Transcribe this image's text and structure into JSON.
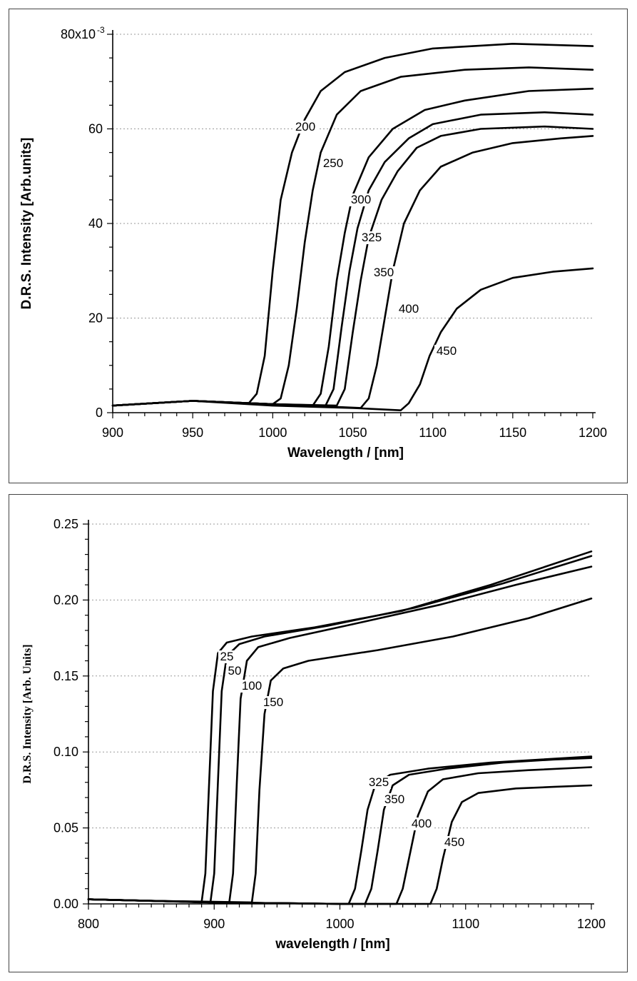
{
  "chart_data": [
    {
      "type": "line",
      "xlabel": "Wavelength / [nm]",
      "ylabel": "D.R.S. Intensity [Arb.units]",
      "xlim": [
        900,
        1200
      ],
      "ylim": [
        0,
        80
      ],
      "x_ticks": [
        "900",
        "950",
        "1000",
        "1050",
        "1100",
        "1150",
        "1200"
      ],
      "y_ticks": [
        "0",
        "20",
        "40",
        "60",
        "80x10"
      ],
      "y_top_exponent": "-3",
      "grid": true,
      "series": [
        {
          "name": "200",
          "points": [
            [
              900,
              1.5
            ],
            [
              950,
              2.5
            ],
            [
              985,
              2.0
            ],
            [
              990,
              4
            ],
            [
              995,
              12
            ],
            [
              1000,
              30
            ],
            [
              1005,
              45
            ],
            [
              1012,
              55
            ],
            [
              1020,
              62
            ],
            [
              1030,
              68
            ],
            [
              1045,
              72
            ],
            [
              1070,
              75
            ],
            [
              1100,
              77
            ],
            [
              1150,
              78
            ],
            [
              1200,
              77.5
            ]
          ]
        },
        {
          "name": "250",
          "points": [
            [
              900,
              1.5
            ],
            [
              950,
              2.5
            ],
            [
              1000,
              1.8
            ],
            [
              1005,
              3
            ],
            [
              1010,
              10
            ],
            [
              1015,
              22
            ],
            [
              1020,
              36
            ],
            [
              1025,
              47
            ],
            [
              1030,
              55
            ],
            [
              1040,
              63
            ],
            [
              1055,
              68
            ],
            [
              1080,
              71
            ],
            [
              1120,
              72.5
            ],
            [
              1160,
              73
            ],
            [
              1200,
              72.5
            ]
          ]
        },
        {
          "name": "300",
          "points": [
            [
              900,
              1.5
            ],
            [
              950,
              2.5
            ],
            [
              1000,
              1.8
            ],
            [
              1025,
              1.5
            ],
            [
              1030,
              4
            ],
            [
              1035,
              14
            ],
            [
              1040,
              28
            ],
            [
              1045,
              38
            ],
            [
              1050,
              46
            ],
            [
              1060,
              54
            ],
            [
              1075,
              60
            ],
            [
              1095,
              64
            ],
            [
              1120,
              66
            ],
            [
              1160,
              68
            ],
            [
              1200,
              68.5
            ]
          ]
        },
        {
          "name": "325",
          "points": [
            [
              900,
              1.5
            ],
            [
              950,
              2.5
            ],
            [
              1000,
              1.8
            ],
            [
              1033,
              1.5
            ],
            [
              1038,
              5
            ],
            [
              1043,
              18
            ],
            [
              1048,
              30
            ],
            [
              1053,
              39
            ],
            [
              1060,
              47
            ],
            [
              1070,
              53
            ],
            [
              1085,
              58
            ],
            [
              1100,
              61
            ],
            [
              1130,
              63
            ],
            [
              1170,
              63.5
            ],
            [
              1200,
              63
            ]
          ]
        },
        {
          "name": "350",
          "points": [
            [
              900,
              1.5
            ],
            [
              950,
              2.5
            ],
            [
              1000,
              1.8
            ],
            [
              1040,
              1.5
            ],
            [
              1045,
              5
            ],
            [
              1050,
              17
            ],
            [
              1055,
              28
            ],
            [
              1060,
              37
            ],
            [
              1068,
              45
            ],
            [
              1078,
              51
            ],
            [
              1090,
              56
            ],
            [
              1105,
              58.5
            ],
            [
              1130,
              60
            ],
            [
              1170,
              60.5
            ],
            [
              1200,
              60
            ]
          ]
        },
        {
          "name": "400",
          "points": [
            [
              900,
              1.5
            ],
            [
              950,
              2.5
            ],
            [
              1000,
              1.8
            ],
            [
              1055,
              1.0
            ],
            [
              1060,
              3
            ],
            [
              1065,
              10
            ],
            [
              1070,
              20
            ],
            [
              1075,
              30
            ],
            [
              1082,
              40
            ],
            [
              1092,
              47
            ],
            [
              1105,
              52
            ],
            [
              1125,
              55
            ],
            [
              1150,
              57
            ],
            [
              1180,
              58
            ],
            [
              1200,
              58.5
            ]
          ]
        },
        {
          "name": "450",
          "points": [
            [
              900,
              1.5
            ],
            [
              950,
              2.5
            ],
            [
              1000,
              1.5
            ],
            [
              1050,
              1.0
            ],
            [
              1080,
              0.5
            ],
            [
              1085,
              2
            ],
            [
              1092,
              6
            ],
            [
              1098,
              12
            ],
            [
              1105,
              17
            ],
            [
              1115,
              22
            ],
            [
              1130,
              26
            ],
            [
              1150,
              28.5
            ],
            [
              1175,
              29.8
            ],
            [
              1200,
              30.5
            ]
          ]
        }
      ],
      "curve_labels": [
        "200",
        "250",
        "300",
        "325",
        "350",
        "400",
        "450"
      ]
    },
    {
      "type": "line",
      "xlabel": "wavelength / [nm]",
      "ylabel": "D.R.S. Intensity [Arb. Units]",
      "xlim": [
        800,
        1200
      ],
      "ylim": [
        0,
        0.25
      ],
      "x_ticks": [
        "800",
        "900",
        "1000",
        "1100",
        "1200"
      ],
      "y_ticks": [
        "0.00",
        "0.05",
        "0.10",
        "0.15",
        "0.20",
        "0.25"
      ],
      "grid": true,
      "series": [
        {
          "name": "25",
          "points": [
            [
              800,
              0.003
            ],
            [
              850,
              0.002
            ],
            [
              890,
              0.001
            ],
            [
              893,
              0.02
            ],
            [
              896,
              0.08
            ],
            [
              899,
              0.14
            ],
            [
              903,
              0.165
            ],
            [
              910,
              0.172
            ],
            [
              930,
              0.176
            ],
            [
              980,
              0.182
            ],
            [
              1050,
              0.193
            ],
            [
              1120,
              0.21
            ],
            [
              1200,
              0.232
            ]
          ]
        },
        {
          "name": "50",
          "points": [
            [
              800,
              0.003
            ],
            [
              850,
              0.002
            ],
            [
              897,
              0.001
            ],
            [
              900,
              0.02
            ],
            [
              903,
              0.08
            ],
            [
              906,
              0.14
            ],
            [
              910,
              0.163
            ],
            [
              920,
              0.171
            ],
            [
              940,
              0.176
            ],
            [
              990,
              0.183
            ],
            [
              1060,
              0.195
            ],
            [
              1130,
              0.211
            ],
            [
              1200,
              0.229
            ]
          ]
        },
        {
          "name": "100",
          "points": [
            [
              800,
              0.003
            ],
            [
              850,
              0.002
            ],
            [
              912,
              0.001
            ],
            [
              915,
              0.02
            ],
            [
              918,
              0.08
            ],
            [
              921,
              0.135
            ],
            [
              926,
              0.16
            ],
            [
              935,
              0.169
            ],
            [
              960,
              0.175
            ],
            [
              1010,
              0.184
            ],
            [
              1080,
              0.197
            ],
            [
              1140,
              0.21
            ],
            [
              1200,
              0.222
            ]
          ]
        },
        {
          "name": "150",
          "points": [
            [
              800,
              0.003
            ],
            [
              850,
              0.002
            ],
            [
              930,
              0.001
            ],
            [
              933,
              0.02
            ],
            [
              936,
              0.075
            ],
            [
              940,
              0.125
            ],
            [
              945,
              0.147
            ],
            [
              955,
              0.155
            ],
            [
              975,
              0.16
            ],
            [
              1030,
              0.167
            ],
            [
              1090,
              0.176
            ],
            [
              1150,
              0.188
            ],
            [
              1200,
              0.201
            ]
          ]
        },
        {
          "name": "325",
          "points": [
            [
              800,
              0.003
            ],
            [
              900,
              0.001
            ],
            [
              1000,
              0.0
            ],
            [
              1007,
              0.0
            ],
            [
              1012,
              0.01
            ],
            [
              1017,
              0.035
            ],
            [
              1022,
              0.062
            ],
            [
              1028,
              0.078
            ],
            [
              1040,
              0.085
            ],
            [
              1070,
              0.089
            ],
            [
              1120,
              0.093
            ],
            [
              1160,
              0.095
            ],
            [
              1200,
              0.097
            ]
          ]
        },
        {
          "name": "350",
          "points": [
            [
              800,
              0.003
            ],
            [
              900,
              0.001
            ],
            [
              1000,
              0.0
            ],
            [
              1020,
              0.0
            ],
            [
              1025,
              0.01
            ],
            [
              1030,
              0.035
            ],
            [
              1035,
              0.062
            ],
            [
              1042,
              0.078
            ],
            [
              1055,
              0.085
            ],
            [
              1085,
              0.089
            ],
            [
              1130,
              0.093
            ],
            [
              1170,
              0.095
            ],
            [
              1200,
              0.096
            ]
          ]
        },
        {
          "name": "400",
          "points": [
            [
              800,
              0.003
            ],
            [
              900,
              0.001
            ],
            [
              1000,
              0.0
            ],
            [
              1045,
              0.0
            ],
            [
              1050,
              0.01
            ],
            [
              1055,
              0.03
            ],
            [
              1062,
              0.058
            ],
            [
              1070,
              0.074
            ],
            [
              1082,
              0.082
            ],
            [
              1110,
              0.086
            ],
            [
              1150,
              0.088
            ],
            [
              1200,
              0.09
            ]
          ]
        },
        {
          "name": "450",
          "points": [
            [
              800,
              0.003
            ],
            [
              900,
              0.001
            ],
            [
              1000,
              0.0
            ],
            [
              1072,
              0.0
            ],
            [
              1077,
              0.01
            ],
            [
              1082,
              0.03
            ],
            [
              1089,
              0.054
            ],
            [
              1097,
              0.067
            ],
            [
              1110,
              0.073
            ],
            [
              1140,
              0.076
            ],
            [
              1170,
              0.077
            ],
            [
              1200,
              0.078
            ]
          ]
        }
      ],
      "curve_labels": [
        "25",
        "50",
        "100",
        "150",
        "325",
        "350",
        "400",
        "450"
      ]
    }
  ]
}
